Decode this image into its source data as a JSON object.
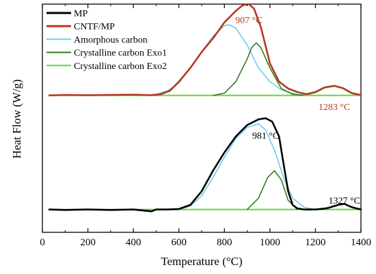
{
  "chart_data": {
    "type": "line",
    "xlabel": "Temperature (°C)",
    "ylabel": "Heat Flow (W/g)",
    "xlim": [
      0,
      1400
    ],
    "xticks": [
      "0",
      "200",
      "400",
      "600",
      "800",
      "1000",
      "1200",
      "1400"
    ],
    "ylim": [
      0,
      10
    ],
    "legend_position": "top-left",
    "grid": false,
    "colors": {
      "MP": "#000000",
      "CNTF/MP": "#b5381f",
      "Amorphous carbon": "#6fcbee",
      "Crystalline carbon Exo1": "#2e7d1c",
      "Crystalline carbon Exo2": "#5fd83a"
    },
    "legend": [
      "MP",
      "CNTF/MP",
      "Amorphous carbon",
      "Crystalline carbon Exo1",
      "Crystalline carbon Exo2"
    ],
    "annotations": [
      {
        "text": "907 °C",
        "x": 907,
        "color": "#b5381f",
        "panel": "upper"
      },
      {
        "text": "1283 °C",
        "x": 1283,
        "color": "#b5381f",
        "panel": "upper"
      },
      {
        "text": "981 °C",
        "x": 981,
        "color": "#000000",
        "panel": "lower"
      },
      {
        "text": "1327 °C",
        "x": 1327,
        "color": "#000000",
        "panel": "lower"
      }
    ],
    "upper_panel": {
      "baseline": 6.0,
      "series": [
        {
          "name": "CNTF/MP",
          "x": [
            30,
            100,
            200,
            300,
            400,
            480,
            520,
            560,
            600,
            650,
            700,
            750,
            800,
            850,
            880,
            907,
            930,
            960,
            1000,
            1040,
            1080,
            1120,
            1160,
            1200,
            1240,
            1283,
            1320,
            1360,
            1400
          ],
          "y": [
            6.0,
            6.02,
            6.01,
            6.02,
            6.03,
            6.01,
            6.05,
            6.2,
            6.6,
            7.2,
            7.9,
            8.5,
            9.2,
            9.7,
            9.95,
            10.0,
            9.8,
            9.0,
            7.4,
            6.6,
            6.3,
            6.15,
            6.05,
            6.15,
            6.35,
            6.42,
            6.32,
            6.1,
            6.02
          ]
        },
        {
          "name": "Amorphous carbon",
          "x": [
            450,
            500,
            550,
            600,
            650,
            700,
            750,
            800,
            820,
            850,
            900,
            950,
            1000,
            1050,
            1100,
            1150
          ],
          "y": [
            6.0,
            6.05,
            6.2,
            6.55,
            7.2,
            7.9,
            8.6,
            9.05,
            9.1,
            8.95,
            8.2,
            7.2,
            6.6,
            6.25,
            6.08,
            6.0
          ]
        },
        {
          "name": "Crystalline carbon Exo1",
          "x": [
            750,
            800,
            850,
            900,
            920,
            940,
            960,
            1000,
            1050,
            1100,
            1150
          ],
          "y": [
            6.0,
            6.1,
            6.6,
            7.6,
            8.1,
            8.3,
            8.1,
            7.2,
            6.3,
            6.05,
            6.0
          ]
        },
        {
          "name": "Crystalline carbon Exo2",
          "x": [
            1150,
            1200,
            1240,
            1283,
            1320,
            1360,
            1400
          ],
          "y": [
            6.0,
            6.12,
            6.32,
            6.4,
            6.3,
            6.08,
            6.0
          ]
        }
      ]
    },
    "lower_panel": {
      "baseline": 1.0,
      "series": [
        {
          "name": "MP",
          "x": [
            30,
            100,
            200,
            300,
            400,
            450,
            480,
            500,
            550,
            600,
            650,
            700,
            750,
            800,
            850,
            900,
            950,
            981,
            1010,
            1040,
            1060,
            1080,
            1100,
            1120,
            1150,
            1200,
            1250,
            1300,
            1327,
            1360,
            1400
          ],
          "y": [
            1.0,
            0.98,
            1.0,
            0.98,
            1.0,
            0.95,
            0.92,
            1.0,
            1.0,
            1.02,
            1.2,
            1.8,
            2.7,
            3.5,
            4.2,
            4.7,
            4.95,
            5.0,
            4.85,
            4.2,
            3.0,
            1.8,
            1.2,
            1.05,
            1.0,
            1.0,
            1.05,
            1.2,
            1.25,
            1.1,
            1.0
          ]
        },
        {
          "name": "Amorphous carbon",
          "x": [
            600,
            650,
            700,
            750,
            800,
            850,
            900,
            950,
            980,
            1020,
            1060,
            1100,
            1150,
            1200
          ],
          "y": [
            1.0,
            1.15,
            1.6,
            2.4,
            3.3,
            4.1,
            4.6,
            4.75,
            4.5,
            3.6,
            2.4,
            1.5,
            1.1,
            1.0
          ]
        },
        {
          "name": "Crystalline carbon Exo1",
          "x": [
            900,
            950,
            990,
            1020,
            1050,
            1080,
            1120
          ],
          "y": [
            1.0,
            1.5,
            2.4,
            2.7,
            2.3,
            1.4,
            1.0
          ]
        },
        {
          "name": "Crystalline carbon Exo2",
          "x": [
            1200,
            1260,
            1300,
            1327,
            1360,
            1400
          ],
          "y": [
            1.0,
            1.1,
            1.22,
            1.25,
            1.12,
            1.0
          ]
        }
      ]
    }
  }
}
